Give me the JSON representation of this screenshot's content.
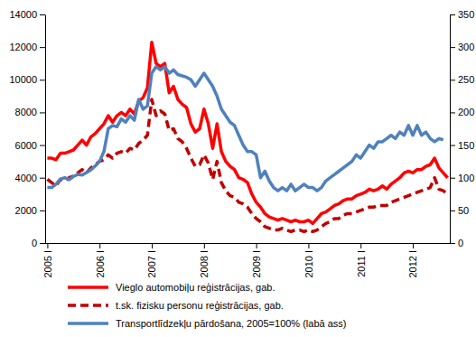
{
  "chart_data": {
    "type": "line",
    "legend": "bottom",
    "categories": [
      "2005 I",
      null,
      null,
      null,
      null,
      null,
      null,
      null,
      null,
      null,
      null,
      null,
      "2006 I",
      null,
      null,
      null,
      null,
      null,
      null,
      null,
      null,
      null,
      null,
      null,
      "2007 I",
      null,
      null,
      null,
      null,
      null,
      null,
      null,
      null,
      null,
      null,
      null,
      "2008 I",
      null,
      null,
      null,
      null,
      null,
      null,
      null,
      null,
      null,
      null,
      null,
      "2009 I",
      null,
      null,
      null,
      null,
      null,
      null,
      null,
      null,
      null,
      null,
      null,
      "2010 I",
      null,
      null,
      null,
      null,
      null,
      null,
      null,
      null,
      null,
      null,
      null,
      "2011 I",
      null,
      null,
      null,
      null,
      null,
      null,
      null,
      null,
      null,
      null,
      null,
      "2012 I",
      null,
      null,
      null,
      null,
      null,
      null,
      null,
      null
    ],
    "ylim": [
      0,
      14000
    ],
    "yticks": [
      0,
      2000,
      4000,
      6000,
      8000,
      10000,
      12000,
      14000
    ],
    "y2lim": [
      0,
      350
    ],
    "y2ticks": [
      0,
      50,
      100,
      150,
      200,
      250,
      300,
      350
    ],
    "series": [
      {
        "name": "Vieglo automobiļu reģistrācijas, gab.",
        "color": "#ff0000",
        "line_style": "solid",
        "values": [
          5200,
          5200,
          5100,
          5500,
          5500,
          5600,
          5700,
          6000,
          6300,
          6000,
          6500,
          6700,
          7000,
          7300,
          7800,
          7400,
          7800,
          8000,
          7800,
          8200,
          7900,
          8700,
          8900,
          9500,
          12300,
          11000,
          10800,
          11000,
          9200,
          9600,
          8800,
          8500,
          8300,
          7300,
          6800,
          7000,
          8200,
          7300,
          5800,
          7300,
          5600,
          5000,
          4700,
          4500,
          4000,
          3900,
          3700,
          3000,
          2500,
          2200,
          1800,
          1600,
          1500,
          1400,
          1500,
          1400,
          1300,
          1400,
          1300,
          1300,
          1400,
          1200,
          1500,
          1800,
          1900,
          2100,
          2300,
          2400,
          2600,
          2700,
          2700,
          2900,
          3000,
          3100,
          3300,
          3200,
          3300,
          3500,
          3300,
          3600,
          3800,
          4000,
          4300,
          4400,
          4300,
          4500,
          4500,
          4700,
          4800,
          5200,
          4600,
          4300,
          4000
        ]
      },
      {
        "name": "t.sk. fizisku personu reģistrācijas, gab.",
        "color": "#c00000",
        "line_style": "dashed",
        "values": [
          3900,
          3700,
          3500,
          3900,
          3800,
          4000,
          4100,
          4300,
          4500,
          4300,
          4600,
          4800,
          5000,
          5100,
          5400,
          5200,
          5500,
          5600,
          5500,
          5800,
          5700,
          6100,
          6300,
          6600,
          8800,
          7800,
          8100,
          7900,
          6900,
          7000,
          6400,
          6200,
          5800,
          5200,
          4700,
          4800,
          5400,
          4900,
          3900,
          5000,
          3700,
          3200,
          2900,
          2800,
          2500,
          2400,
          2200,
          1800,
          1500,
          1300,
          1000,
          900,
          800,
          800,
          900,
          800,
          700,
          800,
          800,
          700,
          800,
          700,
          800,
          1000,
          1200,
          1300,
          1500,
          1500,
          1700,
          1800,
          1800,
          1900,
          2000,
          2100,
          2200,
          2200,
          2300,
          2300,
          2300,
          2500,
          2600,
          2700,
          2800,
          2900,
          3000,
          3100,
          3200,
          3300,
          3400,
          4000,
          3300,
          3200,
          3000
        ]
      },
      {
        "name": "Transportlīdzekļu pārdošana, 2005=100%  (labā ass)",
        "color": "#4f81bd",
        "line_style": "solid",
        "axis": "y2",
        "values": [
          85,
          85,
          90,
          98,
          100,
          97,
          102,
          105,
          104,
          108,
          112,
          118,
          125,
          140,
          175,
          180,
          178,
          190,
          185,
          195,
          188,
          220,
          205,
          210,
          260,
          270,
          265,
          270,
          260,
          265,
          258,
          256,
          254,
          250,
          240,
          250,
          260,
          250,
          240,
          225,
          205,
          195,
          185,
          180,
          165,
          150,
          140,
          140,
          135,
          100,
          110,
          95,
          85,
          80,
          85,
          80,
          90,
          80,
          85,
          90,
          85,
          85,
          80,
          85,
          95,
          100,
          105,
          110,
          115,
          120,
          125,
          135,
          130,
          140,
          150,
          145,
          155,
          155,
          160,
          165,
          160,
          170,
          165,
          180,
          165,
          180,
          165,
          170,
          160,
          155,
          160,
          158,
          null
        ]
      }
    ]
  }
}
